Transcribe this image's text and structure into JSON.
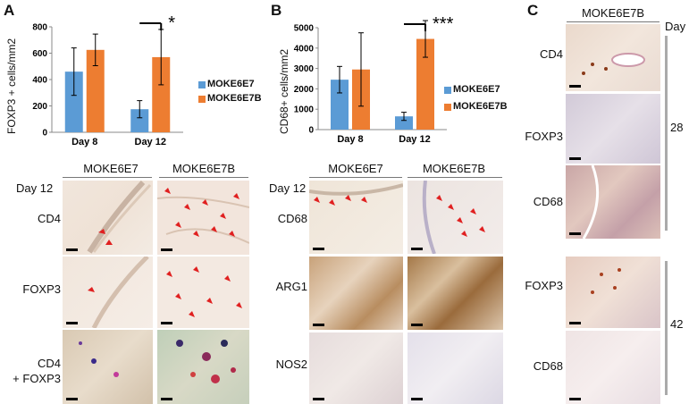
{
  "panels": {
    "a": "A",
    "b": "B",
    "c": "C"
  },
  "legend": {
    "moke6e7": "MOKE6E7",
    "moke6e7b": "MOKE6E7B"
  },
  "colors": {
    "moke6e7": "#5b9bd5",
    "moke6e7b": "#ed7d31"
  },
  "histology_a": {
    "col1": "MOKE6E7",
    "col2": "MOKE6E7B",
    "day": "Day 12",
    "rows": [
      "CD4",
      "FOXP3",
      "CD4\n+ FOXP3"
    ]
  },
  "histology_b": {
    "col1": "MOKE6E7",
    "col2": "MOKE6E7B",
    "day": "Day 12",
    "rows": [
      "CD68",
      "ARG1",
      "NOS2"
    ]
  },
  "histology_c": {
    "title": "MOKE6E7B",
    "day_header": "Day",
    "rows": [
      "CD4",
      "FOXP3",
      "CD68",
      "FOXP3",
      "CD68"
    ],
    "day_groups": [
      "28",
      "42"
    ]
  },
  "chart_data": [
    {
      "type": "bar",
      "categories": [
        "Day 8",
        "Day 12"
      ],
      "ylabel": "FOXP3 + cells/mm2",
      "ylim": [
        0,
        800
      ],
      "yticks": [
        "0",
        "200",
        "400",
        "600",
        "800"
      ],
      "series": [
        {
          "name": "MOKE6E7",
          "values": [
            460,
            175
          ],
          "err": [
            180,
            65
          ]
        },
        {
          "name": "MOKE6E7B",
          "values": [
            625,
            570
          ],
          "err": [
            120,
            210
          ]
        }
      ],
      "significance": "*"
    },
    {
      "type": "bar",
      "categories": [
        "Day 8",
        "Day 12"
      ],
      "ylabel": "CD68+ cells/mm2",
      "ylim": [
        0,
        5000
      ],
      "yticks": [
        "0",
        "1000",
        "2000",
        "3000",
        "4000",
        "5000"
      ],
      "series": [
        {
          "name": "MOKE6E7",
          "values": [
            2450,
            650
          ],
          "err": [
            650,
            200
          ]
        },
        {
          "name": "MOKE6E7B",
          "values": [
            2950,
            4450
          ],
          "err": [
            1800,
            900
          ]
        }
      ],
      "significance": "***"
    }
  ]
}
